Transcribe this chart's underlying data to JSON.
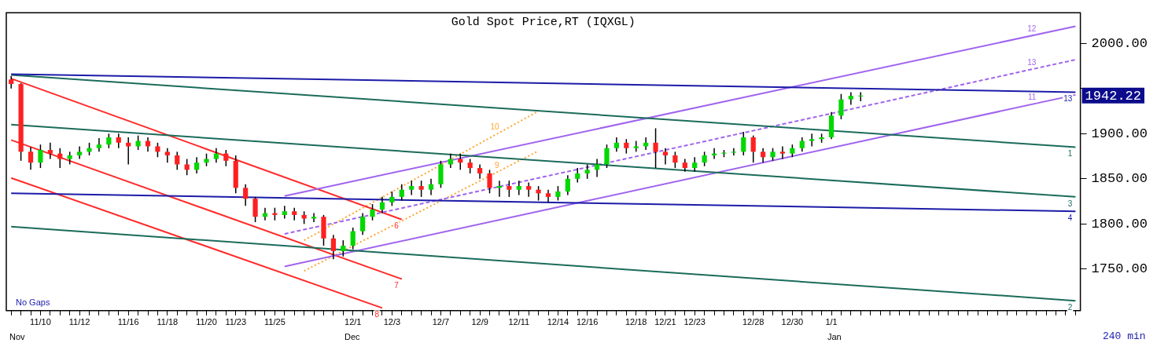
{
  "chart_data": {
    "type": "candlestick",
    "title": "Gold Spot Price,RT (IQXGL)",
    "categories": [
      null,
      null,
      null,
      "11/10",
      null,
      null,
      null,
      "11/12",
      null,
      null,
      null,
      null,
      "11/16",
      null,
      null,
      null,
      "11/18",
      null,
      null,
      null,
      "11/20",
      null,
      null,
      "11/23",
      null,
      null,
      null,
      "11/25",
      null,
      null,
      null,
      null,
      null,
      null,
      null,
      "12/1",
      null,
      null,
      null,
      "12/3",
      null,
      null,
      null,
      null,
      "12/7",
      null,
      null,
      null,
      "12/9",
      null,
      null,
      null,
      "12/11",
      null,
      null,
      null,
      "12/14",
      null,
      null,
      "12/16",
      null,
      null,
      null,
      null,
      "12/18",
      null,
      null,
      "12/21",
      null,
      null,
      "12/23",
      null,
      null,
      null,
      null,
      null,
      "12/28",
      null,
      null,
      null,
      "12/30",
      null,
      null,
      null,
      "1/1",
      null,
      null,
      null,
      null,
      null,
      null,
      null,
      null,
      null,
      null,
      null,
      null,
      null,
      null,
      null,
      null,
      null,
      null,
      null,
      null,
      null,
      null,
      null,
      null,
      null
    ],
    "ohlc": [
      [
        1960,
        1964,
        1950,
        1955
      ],
      [
        1955,
        1956,
        1870,
        1880
      ],
      [
        1880,
        1885,
        1860,
        1868
      ],
      [
        1868,
        1888,
        1862,
        1882
      ],
      [
        1882,
        1890,
        1872,
        1878
      ],
      [
        1878,
        1884,
        1862,
        1872
      ],
      [
        1872,
        1880,
        1866,
        1876
      ],
      [
        1876,
        1886,
        1872,
        1880
      ],
      [
        1880,
        1890,
        1876,
        1884
      ],
      [
        1884,
        1895,
        1880,
        1888
      ],
      [
        1888,
        1900,
        1884,
        1896
      ],
      [
        1896,
        1900,
        1884,
        1890
      ],
      [
        1890,
        1896,
        1866,
        1886
      ],
      [
        1886,
        1898,
        1882,
        1892
      ],
      [
        1892,
        1896,
        1880,
        1886
      ],
      [
        1886,
        1890,
        1874,
        1880
      ],
      [
        1880,
        1884,
        1868,
        1876
      ],
      [
        1876,
        1880,
        1860,
        1866
      ],
      [
        1866,
        1872,
        1854,
        1860
      ],
      [
        1860,
        1874,
        1856,
        1868
      ],
      [
        1868,
        1878,
        1864,
        1872
      ],
      [
        1872,
        1884,
        1868,
        1878
      ],
      [
        1878,
        1882,
        1864,
        1870
      ],
      [
        1870,
        1876,
        1834,
        1840
      ],
      [
        1840,
        1844,
        1820,
        1828
      ],
      [
        1828,
        1830,
        1802,
        1808
      ],
      [
        1808,
        1818,
        1804,
        1812
      ],
      [
        1812,
        1818,
        1804,
        1810
      ],
      [
        1810,
        1820,
        1806,
        1814
      ],
      [
        1814,
        1818,
        1804,
        1810
      ],
      [
        1810,
        1814,
        1800,
        1806
      ],
      [
        1806,
        1812,
        1802,
        1808
      ],
      [
        1808,
        1810,
        1776,
        1784
      ],
      [
        1784,
        1788,
        1761,
        1770
      ],
      [
        1770,
        1782,
        1764,
        1776
      ],
      [
        1776,
        1796,
        1772,
        1792
      ],
      [
        1792,
        1812,
        1788,
        1808
      ],
      [
        1808,
        1822,
        1804,
        1816
      ],
      [
        1816,
        1830,
        1812,
        1824
      ],
      [
        1824,
        1836,
        1820,
        1830
      ],
      [
        1830,
        1844,
        1826,
        1838
      ],
      [
        1838,
        1848,
        1832,
        1842
      ],
      [
        1842,
        1848,
        1830,
        1838
      ],
      [
        1838,
        1850,
        1832,
        1844
      ],
      [
        1844,
        1870,
        1840,
        1866
      ],
      [
        1866,
        1878,
        1862,
        1872
      ],
      [
        1872,
        1878,
        1860,
        1868
      ],
      [
        1868,
        1872,
        1856,
        1862
      ],
      [
        1862,
        1866,
        1850,
        1856
      ],
      [
        1856,
        1860,
        1834,
        1840
      ],
      [
        1840,
        1848,
        1830,
        1842
      ],
      [
        1842,
        1848,
        1830,
        1838
      ],
      [
        1838,
        1848,
        1832,
        1842
      ],
      [
        1842,
        1846,
        1830,
        1838
      ],
      [
        1838,
        1842,
        1826,
        1834
      ],
      [
        1834,
        1838,
        1824,
        1830
      ],
      [
        1830,
        1842,
        1826,
        1836
      ],
      [
        1836,
        1854,
        1832,
        1850
      ],
      [
        1850,
        1862,
        1846,
        1856
      ],
      [
        1856,
        1866,
        1850,
        1860
      ],
      [
        1860,
        1872,
        1852,
        1866
      ],
      [
        1866,
        1888,
        1862,
        1884
      ],
      [
        1884,
        1896,
        1880,
        1890
      ],
      [
        1890,
        1894,
        1878,
        1884
      ],
      [
        1884,
        1892,
        1880,
        1886
      ],
      [
        1886,
        1896,
        1882,
        1890
      ],
      [
        1890,
        1906,
        1862,
        1880
      ],
      [
        1880,
        1884,
        1866,
        1876
      ],
      [
        1876,
        1880,
        1862,
        1868
      ],
      [
        1868,
        1872,
        1858,
        1862
      ],
      [
        1862,
        1874,
        1858,
        1868
      ],
      [
        1868,
        1880,
        1864,
        1876
      ],
      [
        1876,
        1884,
        1872,
        1878
      ],
      [
        1878,
        1882,
        1874,
        1879
      ],
      [
        1879,
        1884,
        1876,
        1880
      ],
      [
        1880,
        1902,
        1876,
        1896
      ],
      [
        1896,
        1898,
        1868,
        1880
      ],
      [
        1880,
        1884,
        1868,
        1874
      ],
      [
        1874,
        1884,
        1870,
        1880
      ],
      [
        1880,
        1886,
        1872,
        1878
      ],
      [
        1878,
        1888,
        1874,
        1884
      ],
      [
        1884,
        1896,
        1880,
        1892
      ],
      [
        1892,
        1900,
        1886,
        1894
      ],
      [
        1894,
        1900,
        1890,
        1896
      ],
      [
        1896,
        1924,
        1894,
        1920
      ],
      [
        1920,
        1944,
        1916,
        1938
      ],
      [
        1938,
        1946,
        1932,
        1942
      ],
      [
        1942,
        1946,
        1936,
        1942.22
      ],
      null,
      null,
      null,
      null,
      null,
      null,
      null,
      null,
      null,
      null,
      null,
      null,
      null,
      null,
      null,
      null,
      null,
      null,
      null,
      null,
      null,
      null
    ],
    "series": [
      {
        "name": "13",
        "type": "line",
        "color": "#1c1ca8",
        "values": [
          1966,
          null,
          null,
          null,
          null,
          null,
          null,
          null,
          null,
          null,
          null,
          null,
          null,
          null,
          null,
          null,
          null,
          null,
          null,
          null,
          null,
          null,
          null,
          null,
          null,
          null,
          null,
          null,
          null,
          null,
          null,
          null,
          null,
          null,
          null,
          null,
          null,
          null,
          null,
          null,
          null,
          null,
          null,
          null,
          null,
          null,
          null,
          null,
          null,
          null,
          null,
          null,
          null,
          null,
          null,
          null,
          null,
          null,
          null,
          null,
          null,
          null,
          null,
          null,
          null,
          null,
          null,
          null,
          null,
          null,
          null,
          null,
          null,
          null,
          null,
          null,
          null,
          null,
          null,
          null,
          null,
          null,
          null,
          null,
          null,
          null,
          null,
          null,
          null,
          null,
          null,
          null,
          null,
          null,
          null,
          null,
          null,
          null,
          null,
          null,
          null,
          null,
          null,
          null,
          null,
          null,
          null,
          null,
          null,
          1946
        ]
      },
      {
        "name": "1",
        "type": "line",
        "color": "#1b6b5b",
        "values": [
          1965,
          null,
          null,
          null,
          null,
          null,
          null,
          null,
          null,
          null,
          null,
          null,
          null,
          null,
          null,
          null,
          null,
          null,
          null,
          null,
          null,
          null,
          null,
          null,
          null,
          null,
          null,
          null,
          null,
          null,
          null,
          null,
          null,
          null,
          null,
          null,
          null,
          null,
          null,
          null,
          null,
          null,
          null,
          null,
          null,
          null,
          null,
          null,
          null,
          null,
          null,
          null,
          null,
          null,
          null,
          null,
          null,
          null,
          null,
          null,
          null,
          null,
          null,
          null,
          null,
          null,
          null,
          null,
          null,
          null,
          null,
          null,
          null,
          null,
          null,
          null,
          null,
          null,
          null,
          null,
          null,
          null,
          null,
          null,
          null,
          null,
          null,
          null,
          null,
          null,
          null,
          null,
          null,
          null,
          null,
          null,
          null,
          null,
          null,
          null,
          null,
          null,
          null,
          null,
          null,
          null,
          null,
          null,
          null,
          1885
        ]
      },
      {
        "name": "3",
        "type": "line",
        "color": "#1b6b5b",
        "values": [
          1910,
          null,
          null,
          null,
          null,
          null,
          null,
          null,
          null,
          null,
          null,
          null,
          null,
          null,
          null,
          null,
          null,
          null,
          null,
          null,
          null,
          null,
          null,
          null,
          null,
          null,
          null,
          null,
          null,
          null,
          null,
          null,
          null,
          null,
          null,
          null,
          null,
          null,
          null,
          null,
          null,
          null,
          null,
          null,
          null,
          null,
          null,
          null,
          null,
          null,
          null,
          null,
          null,
          null,
          null,
          null,
          null,
          null,
          null,
          null,
          null,
          null,
          null,
          null,
          null,
          null,
          null,
          null,
          null,
          null,
          null,
          null,
          null,
          null,
          null,
          null,
          null,
          null,
          null,
          null,
          null,
          null,
          null,
          null,
          null,
          null,
          null,
          null,
          null,
          null,
          null,
          null,
          null,
          null,
          null,
          null,
          null,
          null,
          null,
          null,
          null,
          null,
          null,
          null,
          null,
          null,
          null,
          null,
          null,
          1830
        ]
      },
      {
        "name": "4",
        "type": "line",
        "color": "#1c1ca8",
        "values": [
          1834,
          null,
          null,
          null,
          null,
          null,
          null,
          null,
          null,
          null,
          null,
          null,
          null,
          null,
          null,
          null,
          null,
          null,
          null,
          null,
          null,
          null,
          null,
          null,
          null,
          null,
          null,
          null,
          null,
          null,
          null,
          null,
          null,
          null,
          null,
          null,
          null,
          null,
          null,
          null,
          null,
          null,
          null,
          null,
          null,
          null,
          null,
          null,
          null,
          null,
          null,
          null,
          null,
          null,
          null,
          null,
          null,
          null,
          null,
          null,
          null,
          null,
          null,
          null,
          null,
          null,
          null,
          null,
          null,
          null,
          null,
          null,
          null,
          null,
          null,
          null,
          null,
          null,
          null,
          null,
          null,
          null,
          null,
          null,
          null,
          null,
          null,
          null,
          null,
          null,
          null,
          null,
          null,
          null,
          null,
          null,
          null,
          null,
          null,
          null,
          null,
          null,
          null,
          null,
          null,
          null,
          null,
          null,
          null,
          1814
        ]
      },
      {
        "name": "2",
        "type": "line",
        "color": "#1b6b5b",
        "values": [
          1797,
          null,
          null,
          null,
          null,
          null,
          null,
          null,
          null,
          null,
          null,
          null,
          null,
          null,
          null,
          null,
          null,
          null,
          null,
          null,
          null,
          null,
          null,
          null,
          null,
          null,
          null,
          null,
          null,
          null,
          null,
          null,
          null,
          null,
          null,
          null,
          null,
          null,
          null,
          null,
          null,
          null,
          null,
          null,
          null,
          null,
          null,
          null,
          null,
          null,
          null,
          null,
          null,
          null,
          null,
          null,
          null,
          null,
          null,
          null,
          null,
          null,
          null,
          null,
          null,
          null,
          null,
          null,
          null,
          null,
          null,
          null,
          null,
          null,
          null,
          null,
          null,
          null,
          null,
          null,
          null,
          null,
          null,
          null,
          null,
          null,
          null,
          null,
          null,
          null,
          null,
          null,
          null,
          null,
          null,
          null,
          null,
          null,
          null,
          null,
          null,
          null,
          null,
          null,
          null,
          null,
          null,
          null,
          null,
          1715
        ]
      },
      {
        "name": "12",
        "type": "line",
        "color": "#a064ee",
        "values": [
          null,
          null,
          null,
          null,
          null,
          null,
          null,
          null,
          null,
          null,
          null,
          null,
          null,
          null,
          null,
          null,
          null,
          null,
          null,
          null,
          null,
          null,
          null,
          null,
          null,
          null,
          null,
          null,
          1831,
          null,
          null,
          null,
          null,
          null,
          null,
          null,
          null,
          null,
          null,
          null,
          null,
          null,
          null,
          null,
          null,
          null,
          null,
          null,
          null,
          null,
          null,
          null,
          null,
          null,
          null,
          null,
          null,
          null,
          null,
          null,
          null,
          null,
          null,
          null,
          null,
          null,
          null,
          null,
          null,
          null,
          null,
          null,
          null,
          null,
          null,
          null,
          null,
          null,
          null,
          null,
          null,
          null,
          null,
          null,
          null,
          null,
          null,
          null,
          null,
          null,
          null,
          null,
          null,
          null,
          null,
          null,
          null,
          null,
          null,
          null,
          null,
          null,
          null,
          null,
          null,
          null,
          null,
          null,
          null,
          2019
        ]
      },
      {
        "name": "13",
        "type": "line",
        "color": "#a064ee",
        "line_style": "dashed",
        "values": [
          null,
          null,
          null,
          null,
          null,
          null,
          null,
          null,
          null,
          null,
          null,
          null,
          null,
          null,
          null,
          null,
          null,
          null,
          null,
          null,
          null,
          null,
          null,
          null,
          null,
          null,
          null,
          null,
          1789,
          null,
          null,
          null,
          null,
          null,
          null,
          null,
          null,
          null,
          null,
          null,
          null,
          null,
          null,
          null,
          null,
          null,
          null,
          null,
          null,
          null,
          null,
          null,
          null,
          null,
          null,
          null,
          null,
          null,
          null,
          null,
          null,
          null,
          null,
          null,
          null,
          null,
          null,
          null,
          null,
          null,
          null,
          null,
          null,
          null,
          null,
          null,
          null,
          null,
          null,
          null,
          null,
          null,
          null,
          null,
          null,
          null,
          null,
          null,
          null,
          null,
          null,
          null,
          null,
          null,
          null,
          null,
          null,
          null,
          null,
          null,
          null,
          null,
          null,
          null,
          null,
          null,
          null,
          null,
          null,
          1982
        ]
      },
      {
        "name": "11",
        "type": "line",
        "color": "#a064ee",
        "values": [
          null,
          null,
          null,
          null,
          null,
          null,
          null,
          null,
          null,
          null,
          null,
          null,
          null,
          null,
          null,
          null,
          null,
          null,
          null,
          null,
          null,
          null,
          null,
          null,
          null,
          null,
          null,
          null,
          1753,
          null,
          null,
          null,
          null,
          null,
          null,
          null,
          null,
          null,
          null,
          null,
          null,
          null,
          null,
          null,
          null,
          null,
          null,
          null,
          null,
          null,
          null,
          null,
          null,
          null,
          null,
          null,
          null,
          null,
          null,
          null,
          null,
          null,
          null,
          null,
          null,
          null,
          null,
          null,
          null,
          null,
          null,
          null,
          null,
          null,
          null,
          null,
          null,
          null,
          null,
          null,
          null,
          null,
          null,
          null,
          null,
          null,
          null,
          null,
          null,
          null,
          null,
          null,
          null,
          null,
          null,
          null,
          null,
          null,
          null,
          null,
          null,
          null,
          null,
          null,
          null,
          null,
          null,
          null,
          null,
          1943
        ]
      },
      {
        "name": "6",
        "type": "line",
        "color": "#ff2a2a",
        "values": [
          1961,
          null,
          null,
          null,
          null,
          null,
          null,
          null,
          null,
          null,
          null,
          null,
          null,
          null,
          null,
          null,
          null,
          null,
          null,
          null,
          null,
          null,
          null,
          null,
          null,
          null,
          null,
          null,
          null,
          null,
          null,
          null,
          null,
          null,
          null,
          null,
          null,
          null,
          null,
          null,
          1805,
          null,
          null,
          null,
          null,
          null,
          null,
          null,
          null,
          null,
          null,
          null,
          null,
          null,
          null,
          null,
          null,
          null,
          null,
          null,
          null,
          null,
          null,
          null,
          null,
          null,
          null,
          null,
          null,
          null,
          null,
          null,
          null,
          null,
          null,
          null,
          null,
          null,
          null,
          null,
          null,
          null,
          null,
          null,
          null,
          null,
          null,
          null,
          null,
          null,
          null,
          null,
          null,
          null,
          null,
          null,
          null,
          null,
          null,
          null,
          null,
          null,
          null,
          null,
          null,
          null,
          null,
          null,
          null,
          null
        ]
      },
      {
        "name": "7",
        "type": "line",
        "color": "#ff2a2a",
        "values": [
          1893,
          null,
          null,
          null,
          null,
          null,
          null,
          null,
          null,
          null,
          null,
          null,
          null,
          null,
          null,
          null,
          null,
          null,
          null,
          null,
          null,
          null,
          null,
          null,
          null,
          null,
          null,
          null,
          null,
          null,
          null,
          null,
          null,
          null,
          null,
          null,
          null,
          null,
          null,
          null,
          1739,
          null,
          null,
          null,
          null,
          null,
          null,
          null,
          null,
          null,
          null,
          null,
          null,
          null,
          null,
          null,
          null,
          null,
          null,
          null,
          null,
          null,
          null,
          null,
          null,
          null,
          null,
          null,
          null,
          null,
          null,
          null,
          null,
          null,
          null,
          null,
          null,
          null,
          null,
          null,
          null,
          null,
          null,
          null,
          null,
          null,
          null,
          null,
          null,
          null,
          null,
          null,
          null,
          null,
          null,
          null,
          null,
          null,
          null,
          null,
          null,
          null,
          null,
          null,
          null,
          null,
          null,
          null,
          null,
          null
        ]
      },
      {
        "name": "8",
        "type": "line",
        "color": "#ff2a2a",
        "values": [
          1851,
          null,
          null,
          null,
          null,
          null,
          null,
          null,
          null,
          null,
          null,
          null,
          null,
          null,
          null,
          null,
          null,
          null,
          null,
          null,
          null,
          null,
          null,
          null,
          null,
          null,
          null,
          null,
          null,
          null,
          null,
          null,
          null,
          null,
          null,
          null,
          null,
          null,
          1707,
          null,
          null,
          null,
          null,
          null,
          null,
          null,
          null,
          null,
          null,
          null,
          null,
          null,
          null,
          null,
          null,
          null,
          null,
          null,
          null,
          null,
          null,
          null,
          null,
          null,
          null,
          null,
          null,
          null,
          null,
          null,
          null,
          null,
          null,
          null,
          null,
          null,
          null,
          null,
          null,
          null,
          null,
          null,
          null,
          null,
          null,
          null,
          null,
          null,
          null,
          null,
          null,
          null,
          null,
          null,
          null,
          null,
          null,
          null,
          null,
          null,
          null,
          null,
          null,
          null,
          null,
          null,
          null,
          null,
          null,
          null
        ]
      },
      {
        "name": "10",
        "type": "line",
        "color": "#ffa530",
        "line_style": "dotted",
        "values": [
          null,
          null,
          null,
          null,
          null,
          null,
          null,
          null,
          null,
          null,
          null,
          null,
          null,
          null,
          null,
          null,
          null,
          null,
          null,
          null,
          null,
          null,
          null,
          null,
          null,
          null,
          null,
          null,
          null,
          null,
          1782,
          null,
          null,
          null,
          null,
          null,
          null,
          null,
          null,
          null,
          null,
          null,
          null,
          null,
          null,
          null,
          null,
          null,
          null,
          null,
          null,
          null,
          null,
          null,
          1925,
          null,
          null,
          null,
          null,
          null,
          null,
          null,
          null,
          null,
          null,
          null,
          null,
          null,
          null,
          null,
          null,
          null,
          null,
          null,
          null,
          null,
          null,
          null,
          null,
          null,
          null,
          null,
          null,
          null,
          null,
          null,
          null,
          null,
          null,
          null,
          null,
          null,
          null,
          null,
          null,
          null,
          null,
          null,
          null,
          null,
          null,
          null,
          null,
          null,
          null,
          null,
          null,
          null,
          null,
          null
        ]
      },
      {
        "name": "9",
        "type": "line",
        "color": "#ffa530",
        "line_style": "dotted",
        "values": [
          null,
          null,
          null,
          null,
          null,
          null,
          null,
          null,
          null,
          null,
          null,
          null,
          null,
          null,
          null,
          null,
          null,
          null,
          null,
          null,
          null,
          null,
          null,
          null,
          null,
          null,
          null,
          null,
          null,
          null,
          1748,
          null,
          null,
          null,
          null,
          null,
          null,
          null,
          null,
          null,
          null,
          null,
          null,
          null,
          null,
          null,
          null,
          null,
          null,
          null,
          null,
          null,
          null,
          null,
          1881,
          null,
          null,
          null,
          null,
          null,
          null,
          null,
          null,
          null,
          null,
          null,
          null,
          null,
          null,
          null,
          null,
          null,
          null,
          null,
          null,
          null,
          null,
          null,
          null,
          null,
          null,
          null,
          null,
          null,
          null,
          null,
          null,
          null,
          null,
          null,
          null,
          null,
          null,
          null,
          null,
          null,
          null,
          null,
          null,
          null,
          null,
          null,
          null,
          null,
          null,
          null,
          null,
          null,
          null,
          null
        ]
      }
    ],
    "ylim": [
      1704,
      2034
    ],
    "yticks": [
      {
        "value": 1750,
        "label": "1750.00"
      },
      {
        "value": 1800,
        "label": "1800.00"
      },
      {
        "value": 1850,
        "label": "1850.00"
      },
      {
        "value": 1900,
        "label": "1900.00"
      },
      {
        "value": 1950,
        "label": null
      },
      {
        "value": 2000,
        "label": "2000.00"
      }
    ],
    "grid": false,
    "legend": false,
    "annotations": [
      "No Gaps",
      "240 min",
      "Nov",
      "Dec",
      "Jan",
      "1942.22"
    ]
  }
}
